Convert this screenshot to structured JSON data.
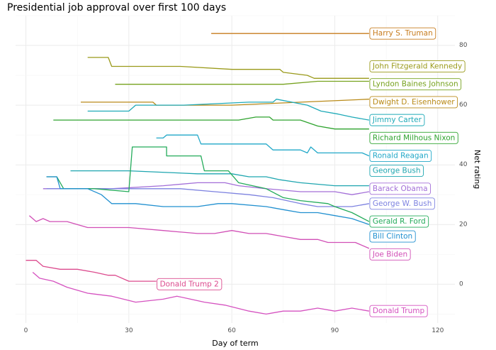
{
  "chart_data": {
    "type": "line",
    "title": "Presidential job approval over first 100 days",
    "xlabel": "Day of term",
    "ylabel": "Net rating",
    "xlim": [
      -3,
      125
    ],
    "ylim": [
      -13,
      90
    ],
    "xticks": [
      0,
      30,
      60,
      90,
      120
    ],
    "yticks": [
      0,
      20,
      40,
      60,
      80
    ],
    "grid": true,
    "yaxis_position": "right",
    "series": [
      {
        "name": "Harry S. Truman",
        "color": "#c77c1e",
        "label_y": 84,
        "points": [
          [
            54,
            84
          ],
          [
            100,
            84
          ]
        ]
      },
      {
        "name": "John Fitzgerald Kennedy",
        "color": "#9a9a1a",
        "label_y": 73,
        "points": [
          [
            18,
            76
          ],
          [
            24,
            76
          ],
          [
            25,
            73
          ],
          [
            45,
            73
          ],
          [
            60,
            72
          ],
          [
            74,
            72
          ],
          [
            75,
            71
          ],
          [
            82,
            70
          ],
          [
            84,
            69
          ],
          [
            100,
            69
          ]
        ]
      },
      {
        "name": "Lyndon Baines Johnson",
        "color": "#77a21f",
        "label_y": 67,
        "points": [
          [
            26,
            67
          ],
          [
            55,
            67
          ],
          [
            75,
            67
          ],
          [
            85,
            68
          ],
          [
            100,
            68
          ]
        ]
      },
      {
        "name": "Dwight D. Eisenhower",
        "color": "#b98a18",
        "label_y": 61,
        "points": [
          [
            16,
            61
          ],
          [
            37,
            61
          ],
          [
            38,
            60
          ],
          [
            60,
            60
          ],
          [
            100,
            62
          ]
        ]
      },
      {
        "name": "Jimmy Carter",
        "color": "#1faab8",
        "label_y": 55,
        "points": [
          [
            18,
            58
          ],
          [
            30,
            58
          ],
          [
            32,
            60
          ],
          [
            46,
            60
          ],
          [
            65,
            61
          ],
          [
            72,
            61
          ],
          [
            73,
            62
          ],
          [
            82,
            60
          ],
          [
            86,
            58
          ],
          [
            91,
            57
          ],
          [
            95,
            56
          ],
          [
            100,
            55
          ]
        ]
      },
      {
        "name": "Richard Milhous Nixon",
        "color": "#2ea32e",
        "label_y": 49,
        "points": [
          [
            8,
            55
          ],
          [
            40,
            55
          ],
          [
            55,
            55
          ],
          [
            62,
            55
          ],
          [
            67,
            56
          ],
          [
            71,
            56
          ],
          [
            72,
            55
          ],
          [
            80,
            55
          ],
          [
            85,
            53
          ],
          [
            90,
            52
          ],
          [
            100,
            52
          ]
        ]
      },
      {
        "name": "Ronald Reagan",
        "color": "#21a8c8",
        "label_y": 43,
        "points": [
          [
            38,
            49
          ],
          [
            40,
            49
          ],
          [
            41,
            50
          ],
          [
            50,
            50
          ],
          [
            51,
            47
          ],
          [
            70,
            47
          ],
          [
            72,
            45
          ],
          [
            80,
            45
          ],
          [
            82,
            44
          ],
          [
            83,
            46
          ],
          [
            85,
            44
          ],
          [
            93,
            44
          ],
          [
            98,
            44
          ],
          [
            100,
            43
          ]
        ]
      },
      {
        "name": "George Bush",
        "color": "#1fa6b0",
        "label_y": 38,
        "points": [
          [
            13,
            38
          ],
          [
            30,
            38
          ],
          [
            50,
            37
          ],
          [
            60,
            37
          ],
          [
            65,
            36
          ],
          [
            70,
            36
          ],
          [
            74,
            35
          ],
          [
            80,
            34
          ],
          [
            90,
            33
          ],
          [
            100,
            33
          ]
        ]
      },
      {
        "name": "Barack Obama",
        "color": "#a36fd8",
        "label_y": 32,
        "points": [
          [
            5,
            32
          ],
          [
            25,
            32
          ],
          [
            40,
            33
          ],
          [
            50,
            34
          ],
          [
            58,
            34
          ],
          [
            62,
            33
          ],
          [
            70,
            32
          ],
          [
            80,
            31
          ],
          [
            90,
            31
          ],
          [
            95,
            30
          ],
          [
            100,
            31
          ]
        ]
      },
      {
        "name": "George W. Bush",
        "color": "#7d82e0",
        "label_y": 27,
        "points": [
          [
            6,
            32
          ],
          [
            30,
            32
          ],
          [
            45,
            32
          ],
          [
            55,
            31
          ],
          [
            65,
            30
          ],
          [
            72,
            29
          ],
          [
            80,
            27
          ],
          [
            85,
            26
          ],
          [
            90,
            26
          ],
          [
            95,
            26
          ],
          [
            100,
            27
          ]
        ]
      },
      {
        "name": "Gerald R. Ford",
        "color": "#23ab5a",
        "label_y": 21,
        "points": [
          [
            6,
            36
          ],
          [
            9,
            36
          ],
          [
            11,
            32
          ],
          [
            20,
            32
          ],
          [
            30,
            31
          ],
          [
            31,
            46
          ],
          [
            41,
            46
          ],
          [
            41,
            43
          ],
          [
            51,
            43
          ],
          [
            52,
            38
          ],
          [
            59,
            38
          ],
          [
            62,
            34
          ],
          [
            70,
            32
          ],
          [
            75,
            29
          ],
          [
            80,
            28
          ],
          [
            88,
            27
          ],
          [
            90,
            26
          ],
          [
            95,
            24
          ],
          [
            100,
            21
          ]
        ]
      },
      {
        "name": "Bill Clinton",
        "color": "#2190d0",
        "label_y": 16,
        "points": [
          [
            6,
            36
          ],
          [
            9,
            36
          ],
          [
            10,
            32
          ],
          [
            18,
            32
          ],
          [
            22,
            30
          ],
          [
            25,
            27
          ],
          [
            32,
            27
          ],
          [
            40,
            26
          ],
          [
            50,
            26
          ],
          [
            56,
            27
          ],
          [
            60,
            27
          ],
          [
            70,
            26
          ],
          [
            75,
            25
          ],
          [
            80,
            24
          ],
          [
            85,
            24
          ],
          [
            90,
            23
          ],
          [
            95,
            22
          ],
          [
            100,
            20
          ]
        ]
      },
      {
        "name": "Joe Biden",
        "color": "#d14fb6",
        "label_y": 10,
        "points": [
          [
            1,
            23
          ],
          [
            3,
            21
          ],
          [
            5,
            22
          ],
          [
            7,
            21
          ],
          [
            12,
            21
          ],
          [
            18,
            19
          ],
          [
            25,
            19
          ],
          [
            30,
            19
          ],
          [
            40,
            18
          ],
          [
            50,
            17
          ],
          [
            55,
            17
          ],
          [
            60,
            18
          ],
          [
            65,
            17
          ],
          [
            70,
            17
          ],
          [
            75,
            16
          ],
          [
            80,
            15
          ],
          [
            85,
            15
          ],
          [
            88,
            14
          ],
          [
            92,
            14
          ],
          [
            96,
            14
          ],
          [
            100,
            12
          ]
        ]
      },
      {
        "name": "Donald Trump 2",
        "color": "#dc4b8e",
        "label_y": 0,
        "points": [
          [
            0,
            8
          ],
          [
            3,
            8
          ],
          [
            5,
            6
          ],
          [
            10,
            5
          ],
          [
            15,
            5
          ],
          [
            20,
            4
          ],
          [
            24,
            3
          ],
          [
            26,
            3
          ],
          [
            30,
            1
          ],
          [
            38,
            1
          ]
        ]
      },
      {
        "name": "Donald Trump",
        "color": "#d552c0",
        "label_y": -9,
        "points": [
          [
            2,
            4
          ],
          [
            4,
            2
          ],
          [
            8,
            1
          ],
          [
            12,
            -1
          ],
          [
            18,
            -3
          ],
          [
            25,
            -4
          ],
          [
            32,
            -6
          ],
          [
            40,
            -5
          ],
          [
            44,
            -4
          ],
          [
            48,
            -5
          ],
          [
            52,
            -6
          ],
          [
            58,
            -7
          ],
          [
            65,
            -9
          ],
          [
            70,
            -10
          ],
          [
            75,
            -9
          ],
          [
            80,
            -9
          ],
          [
            85,
            -8
          ],
          [
            90,
            -9
          ],
          [
            95,
            -8
          ],
          [
            100,
            -9
          ]
        ]
      }
    ]
  }
}
